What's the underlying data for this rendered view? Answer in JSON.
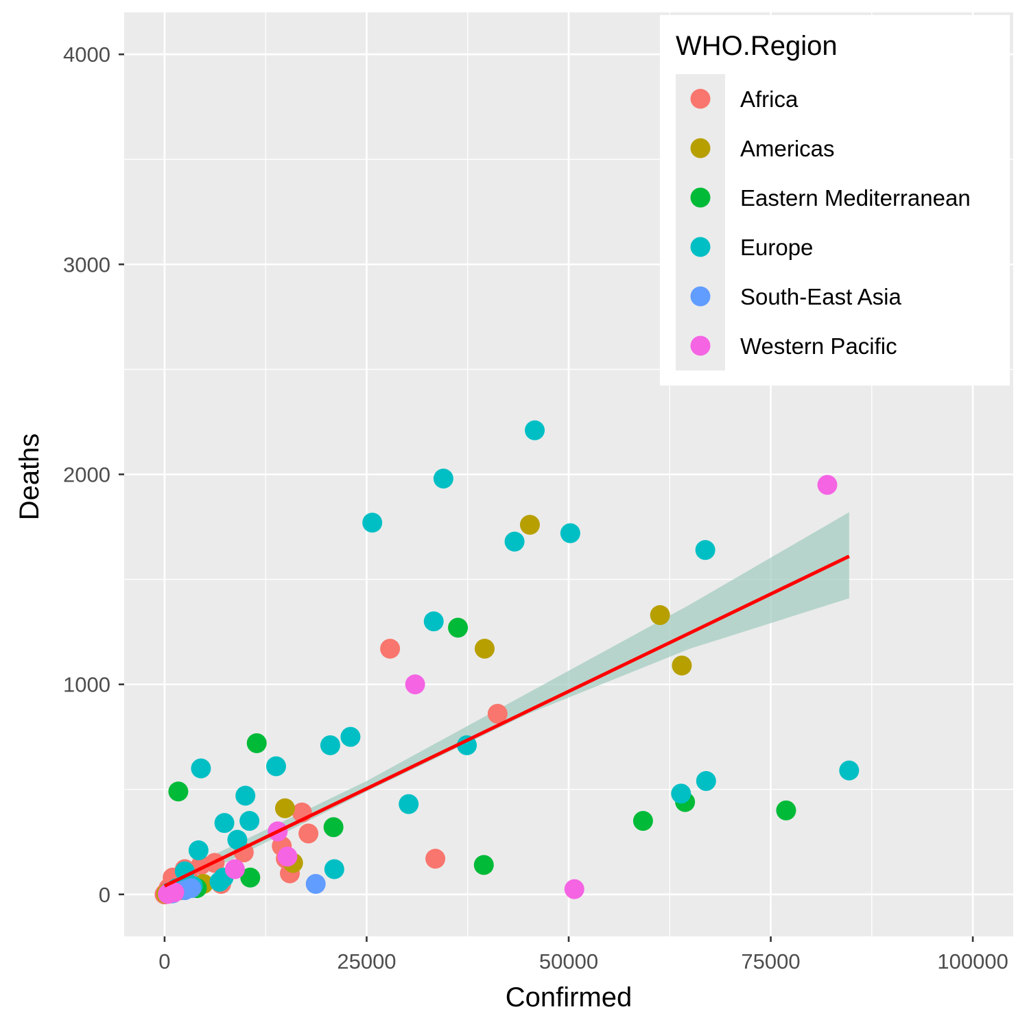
{
  "chart_data": {
    "type": "scatter",
    "title": "",
    "xlabel": "Confirmed",
    "ylabel": "Deaths",
    "xlim": [
      -5000,
      105000
    ],
    "ylim": [
      -200,
      4200
    ],
    "x_ticks": [
      0,
      25000,
      50000,
      75000,
      100000
    ],
    "x_tick_labels": [
      "0",
      "25000",
      "50000",
      "75000",
      "100000"
    ],
    "y_ticks": [
      0,
      1000,
      2000,
      3000,
      4000
    ],
    "y_tick_labels": [
      "0",
      "1000",
      "2000",
      "3000",
      "4000"
    ],
    "grid": true,
    "legend": {
      "title": "WHO.Region",
      "position": "top-right",
      "entries": [
        "Africa",
        "Americas",
        "Eastern Mediterranean",
        "Europe",
        "South-East Asia",
        "Western Pacific"
      ]
    },
    "colors": {
      "Africa": "#F8766D",
      "Americas": "#B79F00",
      "Eastern Mediterranean": "#00BA38",
      "Europe": "#00BFC4",
      "South-East Asia": "#619CFF",
      "Western Pacific": "#F564E3",
      "trend_line": "#FF0000",
      "confidence_band": "#9FCBBE",
      "panel": "#EBEBEB",
      "grid": "#FFFFFF"
    },
    "series": [
      {
        "name": "Africa",
        "points": [
          [
            27900,
            1170
          ],
          [
            41200,
            860
          ],
          [
            33500,
            170
          ],
          [
            17800,
            290
          ],
          [
            17000,
            390
          ],
          [
            14500,
            230
          ],
          [
            15000,
            170
          ],
          [
            15500,
            100
          ],
          [
            9800,
            200
          ],
          [
            7000,
            50
          ],
          [
            6200,
            150
          ],
          [
            4500,
            140
          ],
          [
            3000,
            70
          ],
          [
            2500,
            120
          ],
          [
            1700,
            50
          ],
          [
            1000,
            80
          ],
          [
            600,
            20
          ],
          [
            300,
            10
          ],
          [
            100,
            5
          ],
          [
            0,
            0
          ],
          [
            500,
            30
          ],
          [
            200,
            2
          ]
        ]
      },
      {
        "name": "Americas",
        "points": [
          [
            45200,
            1760
          ],
          [
            61300,
            1330
          ],
          [
            64000,
            1090
          ],
          [
            39600,
            1170
          ],
          [
            14900,
            410
          ],
          [
            15900,
            150
          ],
          [
            4800,
            50
          ],
          [
            2000,
            20
          ],
          [
            800,
            10
          ],
          [
            200,
            2
          ]
        ]
      },
      {
        "name": "Eastern Mediterranean",
        "points": [
          [
            36300,
            1270
          ],
          [
            11400,
            720
          ],
          [
            1700,
            490
          ],
          [
            20900,
            320
          ],
          [
            10600,
            80
          ],
          [
            39500,
            140
          ],
          [
            59200,
            350
          ],
          [
            64400,
            440
          ],
          [
            76900,
            400
          ],
          [
            4000,
            30
          ],
          [
            900,
            5
          ]
        ]
      },
      {
        "name": "Europe",
        "points": [
          [
            45800,
            2210
          ],
          [
            34500,
            1980
          ],
          [
            25700,
            1770
          ],
          [
            50200,
            1720
          ],
          [
            43300,
            1680
          ],
          [
            66900,
            1640
          ],
          [
            33300,
            1300
          ],
          [
            23000,
            750
          ],
          [
            20500,
            710
          ],
          [
            37400,
            710
          ],
          [
            13800,
            610
          ],
          [
            4500,
            600
          ],
          [
            84700,
            590
          ],
          [
            67000,
            540
          ],
          [
            63900,
            480
          ],
          [
            10000,
            470
          ],
          [
            30200,
            430
          ],
          [
            10500,
            350
          ],
          [
            7400,
            340
          ],
          [
            9000,
            260
          ],
          [
            4200,
            210
          ],
          [
            21000,
            120
          ],
          [
            7300,
            80
          ],
          [
            2500,
            110
          ],
          [
            6800,
            60
          ],
          [
            1500,
            30
          ],
          [
            600,
            10
          ],
          [
            3500,
            40
          ]
        ]
      },
      {
        "name": "South-East Asia",
        "points": [
          [
            18700,
            50
          ],
          [
            3300,
            30
          ],
          [
            2500,
            20
          ],
          [
            1000,
            5
          ]
        ]
      },
      {
        "name": "Western Pacific",
        "points": [
          [
            82000,
            1950
          ],
          [
            31000,
            1000
          ],
          [
            50700,
            25
          ],
          [
            14000,
            300
          ],
          [
            15200,
            180
          ],
          [
            8700,
            120
          ],
          [
            1200,
            10
          ],
          [
            400,
            2
          ]
        ]
      }
    ],
    "trend_line": {
      "x": [
        0,
        84700
      ],
      "y": [
        40,
        1610
      ]
    },
    "confidence_band": {
      "x": [
        0,
        25000,
        45000,
        65000,
        84700
      ],
      "lower": [
        5,
        490,
        860,
        1170,
        1410
      ],
      "upper": [
        75,
        540,
        960,
        1380,
        1820
      ]
    }
  }
}
